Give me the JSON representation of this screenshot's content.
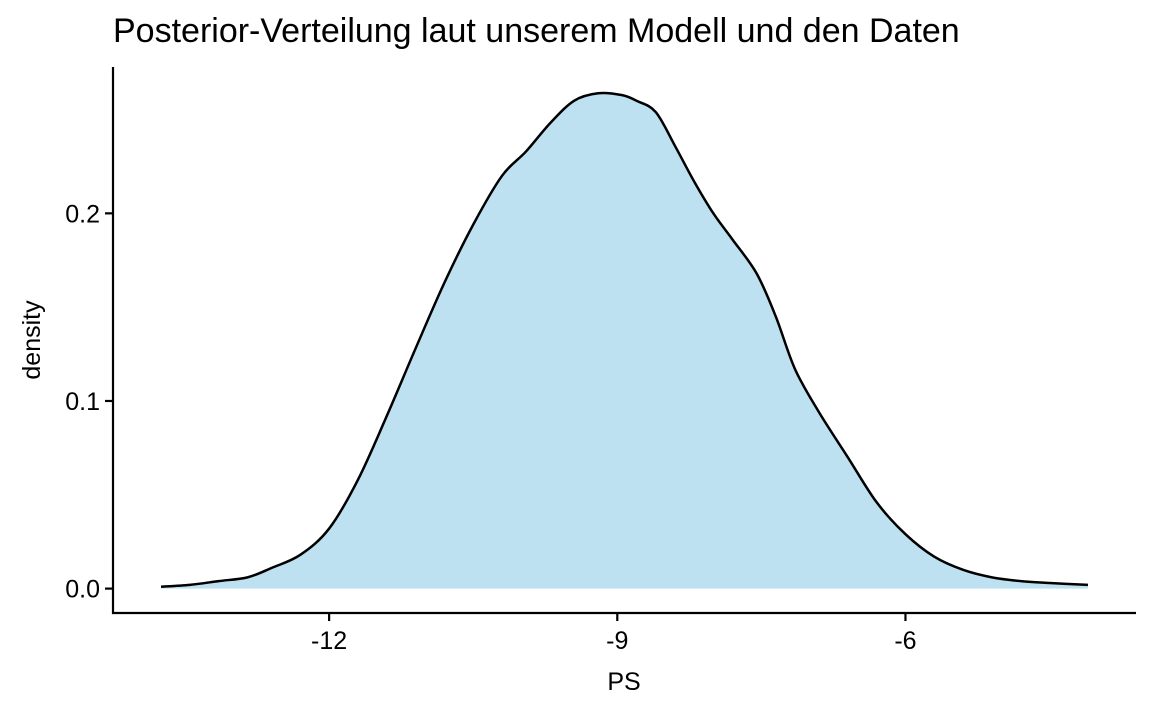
{
  "chart_data": {
    "type": "area",
    "title": "Posterior-Verteilung laut unserem Modell und den Daten",
    "xlabel": "PS",
    "ylabel": "density",
    "xlim": [
      -14.25,
      -3.6
    ],
    "ylim": [
      -0.013,
      0.278
    ],
    "x_ticks": [
      -12,
      -9,
      -6
    ],
    "x_tick_labels": [
      "-12",
      "-9",
      "-6"
    ],
    "y_ticks": [
      0.0,
      0.1,
      0.2
    ],
    "y_tick_labels": [
      "0.0",
      "0.1",
      "0.2"
    ],
    "grid": false,
    "legend": "none",
    "fill_color": "#BEE1F2",
    "line_color": "#000000",
    "series": [
      {
        "x": [
          -13.75,
          -13.45,
          -13.15,
          -12.85,
          -12.6,
          -12.3,
          -12.0,
          -11.7,
          -11.4,
          -11.1,
          -10.8,
          -10.5,
          -10.2,
          -9.95,
          -9.7,
          -9.45,
          -9.2,
          -8.95,
          -8.8,
          -8.6,
          -8.4,
          -8.2,
          -8.0,
          -7.8,
          -7.55,
          -7.35,
          -7.15,
          -6.9,
          -6.6,
          -6.3,
          -6.0,
          -5.7,
          -5.4,
          -5.1,
          -4.8,
          -4.5,
          -4.1
        ],
        "y": [
          0.001,
          0.002,
          0.004,
          0.006,
          0.011,
          0.018,
          0.032,
          0.058,
          0.092,
          0.128,
          0.163,
          0.194,
          0.22,
          0.233,
          0.248,
          0.26,
          0.264,
          0.263,
          0.26,
          0.254,
          0.236,
          0.217,
          0.2,
          0.186,
          0.168,
          0.145,
          0.117,
          0.094,
          0.07,
          0.046,
          0.029,
          0.017,
          0.01,
          0.006,
          0.004,
          0.003,
          0.002
        ]
      }
    ]
  }
}
